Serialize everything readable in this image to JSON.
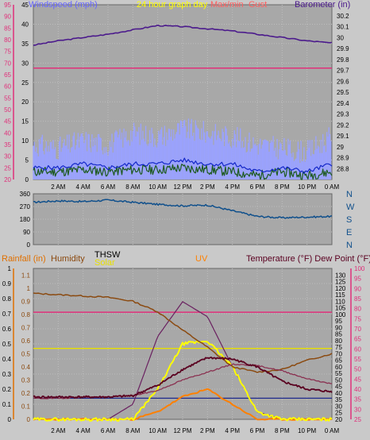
{
  "header": {
    "windspeed_label": "Windspeed (mph)",
    "graph_day_label": "24 hour graph day",
    "mid_label_1": "Max/min",
    "mid_label_2": "Gust",
    "barometer_label": "Barometer (in)"
  },
  "time_labels": [
    "2 AM",
    "4 AM",
    "6 AM",
    "8 AM",
    "10 AM",
    "12 PM",
    "2 PM",
    "4 PM",
    "6 PM",
    "8 PM",
    "10 PM",
    "0 AM"
  ],
  "colors": {
    "panel_bg": "#a8a8a8",
    "page_bg": "#c9c9c9",
    "pink_axis": "#e0307a",
    "barometer": "#4b1a8c",
    "wind_light": "#9aa2ff",
    "wind_blue": "#1428c8",
    "wind_green": "#1e5a1e",
    "direction": "#10508c",
    "rain_axis": "#e07000",
    "humidity": "#8b4a10",
    "thsw": "#3a1040",
    "solar": "#ffff00",
    "uv": "#ff8000",
    "temperature": "#5a0020",
    "dewpoint": "#d0206a"
  },
  "chart_data": [
    {
      "type": "line",
      "name": "wind-barometer",
      "left_axis": {
        "label": "Windspeed (mph)",
        "ylim": [
          20,
          95
        ],
        "ticks": [
          20,
          25,
          30,
          35,
          40,
          45,
          50,
          55,
          60,
          65,
          70,
          75,
          80,
          85,
          90,
          95
        ]
      },
      "mid_axis": {
        "ylim": [
          0,
          45
        ],
        "ticks": [
          0,
          5,
          10,
          15,
          20,
          25,
          30,
          35,
          40,
          45
        ]
      },
      "right_axis": {
        "label": "Barometer (in)",
        "ylim": [
          28.7,
          30.3
        ],
        "ticks": [
          28.8,
          28.9,
          29,
          29.1,
          29.2,
          29.3,
          29.4,
          29.5,
          29.6,
          29.7,
          29.8,
          29.9,
          30,
          30.1,
          30.2
        ]
      },
      "x": [
        0,
        2,
        4,
        6,
        8,
        10,
        12,
        14,
        16,
        18,
        20,
        22,
        24
      ],
      "series": [
        {
          "axis": "right",
          "values": [
            29.93,
            29.97,
            30.0,
            30.03,
            30.07,
            30.11,
            30.1,
            30.08,
            30.06,
            30.03,
            30.0,
            29.97,
            29.95
          ]
        },
        {
          "axis": "right",
          "values": [
            29.72,
            29.72,
            29.72,
            29.72,
            29.72,
            29.72,
            29.72,
            29.72,
            29.72,
            29.72,
            29.72,
            29.72,
            29.72
          ]
        },
        {
          "axis": "mid",
          "values": [
            9,
            8,
            10,
            9,
            12,
            11,
            13,
            12,
            11,
            9,
            8,
            7,
            11
          ]
        },
        {
          "axis": "mid",
          "values": [
            3,
            3,
            4,
            3,
            4,
            4,
            5,
            4,
            4,
            2,
            3,
            2,
            4
          ]
        },
        {
          "axis": "mid",
          "values": [
            2,
            2,
            2.5,
            2,
            2.5,
            2.5,
            3,
            2.5,
            2,
            1,
            2,
            1,
            2
          ]
        }
      ]
    },
    {
      "type": "line",
      "name": "wind-direction",
      "left_axis": {
        "ylim": [
          0,
          360
        ],
        "ticks": [
          0,
          90,
          180,
          270,
          360
        ]
      },
      "right_axis": {
        "labels": [
          "N",
          "W",
          "S",
          "E",
          "N"
        ]
      },
      "x": [
        0,
        2,
        4,
        6,
        8,
        10,
        12,
        14,
        16,
        18,
        20,
        22,
        24
      ],
      "series": [
        {
          "values": [
            300,
            310,
            305,
            315,
            300,
            285,
            275,
            280,
            240,
            200,
            190,
            195,
            200
          ]
        }
      ]
    },
    {
      "type": "line",
      "name": "rain-humidity-temperature",
      "left_axis": {
        "label": "Rainfall (in)",
        "ylim": [
          0,
          1.0
        ],
        "ticks": [
          0,
          0.1,
          0.2,
          0.3,
          0.4,
          0.5,
          0.6,
          0.7,
          0.8,
          0.9,
          1
        ]
      },
      "humidity_axis": {
        "label": "Humidity",
        "ylim": [
          0,
          1.15
        ],
        "ticks": [
          0,
          0.1,
          0.2,
          0.3,
          0.4,
          0.5,
          0.6,
          0.7,
          0.8,
          0.9,
          1,
          1.1
        ]
      },
      "legend": {
        "thsw": "THSW",
        "solar": "Solar",
        "uv": "UV",
        "temperature": "Temperature (°F) Dew Point (°F)"
      },
      "right_axis": {
        "ylim": [
          20,
          135
        ],
        "ticks": [
          20,
          25,
          30,
          35,
          40,
          45,
          50,
          55,
          60,
          65,
          70,
          75,
          80,
          85,
          90,
          95,
          100,
          105,
          110,
          115,
          120,
          125,
          130
        ]
      },
      "right2_axis": {
        "ylim": [
          25,
          100
        ],
        "ticks": [
          25,
          30,
          35,
          40,
          45,
          50,
          55,
          60,
          65,
          70,
          75,
          80,
          85,
          90,
          95,
          100
        ]
      },
      "x": [
        0,
        2,
        4,
        6,
        8,
        10,
        12,
        14,
        16,
        18,
        20,
        22,
        24
      ],
      "series": [
        {
          "axis": "humidity",
          "values": [
            0.96,
            0.95,
            0.94,
            0.93,
            0.9,
            0.82,
            0.68,
            0.55,
            0.4,
            0.36,
            0.38,
            0.45,
            0.5
          ]
        },
        {
          "axis": "right",
          "values": [
            37,
            37,
            37,
            37,
            38,
            46,
            58,
            67,
            66,
            60,
            49,
            43,
            41
          ]
        },
        {
          "axis": "right",
          "values": [
            36,
            36,
            37,
            37,
            38,
            42,
            50,
            56,
            62,
            61,
            57,
            51,
            47
          ]
        },
        {
          "axis": "left",
          "values": [
            0.71,
            0.71,
            0.71,
            0.71,
            0.71,
            0.71,
            0.71,
            0.71,
            0.71,
            0.71,
            0.71,
            0.71,
            0.71
          ]
        },
        {
          "axis": "left",
          "values": [
            0.14,
            0.14,
            0.14,
            0.14,
            0.14,
            0.14,
            0.14,
            0.14,
            0.14,
            0.14,
            0.14,
            0.14,
            0.14
          ]
        },
        {
          "axis": "left",
          "values": [
            0.47,
            0.47,
            0.47,
            0.47,
            0.47,
            0.47,
            0.47,
            0.47,
            0.47,
            0.47,
            0.47,
            0.47,
            0.47
          ]
        },
        {
          "axis": "left",
          "values": [
            0,
            0,
            0,
            0,
            0,
            0.2,
            0.5,
            0.52,
            0.35,
            0.05,
            0,
            0,
            0
          ]
        },
        {
          "axis": "left",
          "values": [
            0,
            0,
            0,
            0,
            0,
            0.05,
            0.15,
            0.2,
            0.1,
            0,
            0,
            0,
            0
          ]
        },
        {
          "axis": "left",
          "values": [
            0,
            0,
            0,
            0,
            0.1,
            0.55,
            0.78,
            0.68,
            0.35,
            0.05,
            0,
            0,
            0
          ]
        }
      ]
    }
  ]
}
